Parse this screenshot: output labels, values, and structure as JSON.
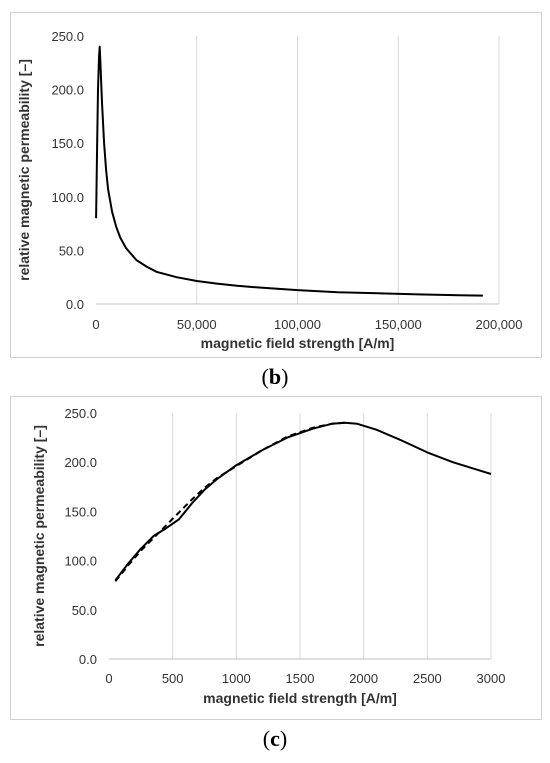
{
  "chart_data": [
    {
      "panel": "b",
      "type": "line",
      "title": "",
      "xlabel": "magnetic field strength [A/m]",
      "ylabel": "relative magnetic permeability [–]",
      "xlim": [
        0,
        200000
      ],
      "ylim": [
        0,
        250
      ],
      "x_ticks": [
        "0",
        "50,000",
        "100,000",
        "150,000",
        "200,000"
      ],
      "y_ticks": [
        "0.0",
        "50.0",
        "100.0",
        "150.0",
        "200.0",
        "250.0"
      ],
      "grid": "vertical",
      "legend": "none",
      "series": [
        {
          "style": "solid",
          "x": [
            50,
            500,
            1000,
            1500,
            1850,
            2200,
            3000,
            4000,
            5000,
            6000,
            8000,
            10000,
            12000,
            15000,
            20000,
            25000,
            30000,
            40000,
            50000,
            60000,
            70000,
            80000,
            100000,
            120000,
            140000,
            160000,
            180000,
            192000
          ],
          "y": [
            80,
            140,
            200,
            230,
            240,
            225,
            188,
            150,
            125,
            107,
            86,
            72,
            62,
            52,
            41,
            35,
            30,
            25,
            21.5,
            19,
            17,
            15.5,
            13,
            11,
            10,
            9,
            8.2,
            7.8
          ]
        }
      ]
    },
    {
      "panel": "c",
      "type": "line",
      "title": "",
      "xlabel": "magnetic field strength [A/m]",
      "ylabel": "relative magnetic permeability [–]",
      "xlim": [
        0,
        3000
      ],
      "ylim": [
        0,
        250
      ],
      "x_ticks": [
        "0",
        "500",
        "1000",
        "1500",
        "2000",
        "2500",
        "3000"
      ],
      "y_ticks": [
        "0.0",
        "50.0",
        "100.0",
        "150.0",
        "200.0",
        "250.0"
      ],
      "grid": "vertical",
      "legend": "none",
      "series": [
        {
          "style": "solid",
          "x": [
            50,
            150,
            250,
            350,
            450,
            550,
            650,
            750,
            850,
            1000,
            1200,
            1400,
            1600,
            1750,
            1850,
            1950,
            2100,
            2300,
            2500,
            2700,
            2900,
            3000
          ],
          "y": [
            80,
            97,
            112,
            125,
            133,
            142,
            158,
            172,
            183,
            197,
            212,
            225,
            234,
            239,
            240,
            239,
            233,
            222,
            210,
            200,
            192,
            188
          ]
        },
        {
          "style": "dashed",
          "x": [
            50,
            150,
            250,
            350,
            450,
            550,
            650,
            750,
            850,
            1000,
            1200,
            1400,
            1600,
            1750,
            1850
          ],
          "y": [
            79,
            95,
            110,
            123,
            136,
            149,
            162,
            174,
            184,
            196,
            212,
            226,
            235,
            239,
            240
          ]
        }
      ]
    }
  ],
  "captions": {
    "b": {
      "open": "(",
      "letter": "b",
      "close": ")"
    },
    "c": {
      "open": "(",
      "letter": "c",
      "close": ")"
    }
  }
}
